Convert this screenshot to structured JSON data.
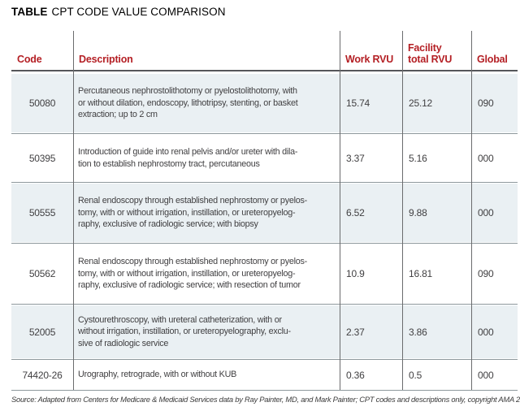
{
  "title": {
    "bold": "TABLE",
    "rest": "CPT CODE VALUE COMPARISON"
  },
  "columns": {
    "code": "Code",
    "description": "Description",
    "work_rvu": "Work RVU",
    "facility_total_rvu": "Facility\ntotal RVU",
    "global": "Global"
  },
  "rows": [
    {
      "code": "50080",
      "description": "Percutaneous nephrostolithotomy or pyelostolithotomy, with\nor without dilation, endoscopy, lithotripsy, stenting, or basket\nextraction; up to 2 cm",
      "work_rvu": "15.74",
      "facility_total_rvu": "25.12",
      "global": "090"
    },
    {
      "code": "50395",
      "description": "Introduction of guide into renal pelvis and/or ureter with dila-\ntion to establish nephrostomy tract, percutaneous",
      "work_rvu": "3.37",
      "facility_total_rvu": "5.16",
      "global": "000"
    },
    {
      "code": "50555",
      "description": "Renal endoscopy through established nephrostomy or pyelos-\ntomy, with or without irrigation, instillation, or ureteropyelog-\nraphy, exclusive of radiologic service; with biopsy",
      "work_rvu": "6.52",
      "facility_total_rvu": "9.88",
      "global": "000"
    },
    {
      "code": "50562",
      "description": "Renal endoscopy through established nephrostomy or pyelos-\ntomy, with or without irrigation, instillation, or ureteropyelog-\nraphy, exclusive of radiologic service; with resection of tumor",
      "work_rvu": "10.9",
      "facility_total_rvu": "16.81",
      "global": "090"
    },
    {
      "code": "52005",
      "description": "Cystourethroscopy, with ureteral catheterization, with or\nwithout irrigation, instillation, or ureteropyelography, exclu-\nsive of radiologic service",
      "work_rvu": "2.37",
      "facility_total_rvu": "3.86",
      "global": "000"
    },
    {
      "code": "74420-26",
      "description": "Urography, retrograde, with or without KUB",
      "work_rvu": "0.36",
      "facility_total_rvu": "0.5",
      "global": "000"
    }
  ],
  "source": "Source: Adapted from Centers for Medicare & Medicaid Services data by Ray Painter, MD, and Mark Painter; CPT codes and descriptions only, copyright AMA 2016",
  "colors": {
    "header_text": "#b41f24",
    "row_alt_bg": "#eaf0f3",
    "header_rule": "#55565a",
    "row_separator": "#8d989c",
    "column_line": "#6b6c6e",
    "body_text": "#414042"
  }
}
